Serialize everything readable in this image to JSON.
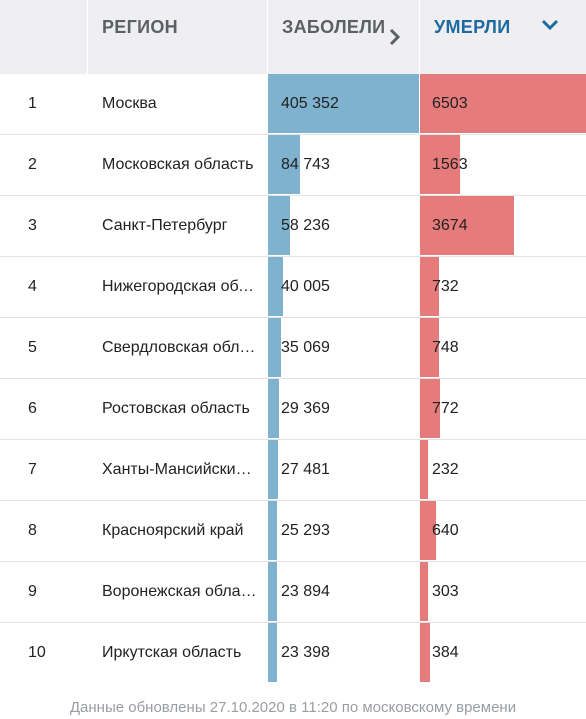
{
  "header": {
    "num": "",
    "region": "РЕГИОН",
    "cases": "ЗАБОЛЕЛИ",
    "deaths": "УМЕРЛИ"
  },
  "colors": {
    "cases_bar": "#7fb2ce",
    "deaths_bar": "#e67b7b",
    "header_bg": "#efeff1",
    "active_header_text": "#1d6aa0"
  },
  "icons": {
    "cases_sort": "chevron-right-icon",
    "deaths_sort": "chevron-down-icon"
  },
  "rows": [
    {
      "num": "1",
      "region": "Москва",
      "cases": "405 352",
      "deaths": "6503"
    },
    {
      "num": "2",
      "region": "Московская область",
      "cases": "84 743",
      "deaths": "1563"
    },
    {
      "num": "3",
      "region": "Санкт-Петербург",
      "cases": "58 236",
      "deaths": "3674"
    },
    {
      "num": "4",
      "region": "Нижегородская область",
      "cases": "40 005",
      "deaths": "732"
    },
    {
      "num": "5",
      "region": "Свердловская область",
      "cases": "35 069",
      "deaths": "748"
    },
    {
      "num": "6",
      "region": "Ростовская область",
      "cases": "29 369",
      "deaths": "772"
    },
    {
      "num": "7",
      "region": "Ханты-Мансийский АО",
      "cases": "27 481",
      "deaths": "232"
    },
    {
      "num": "8",
      "region": "Красноярский край",
      "cases": "25 293",
      "deaths": "640"
    },
    {
      "num": "9",
      "region": "Воронежская область",
      "cases": "23 894",
      "deaths": "303"
    },
    {
      "num": "10",
      "region": "Иркутская область",
      "cases": "23 398",
      "deaths": "384"
    }
  ],
  "footnote": "Данные обновлены 27.10.2020 в 11:20 по московскому времени"
}
